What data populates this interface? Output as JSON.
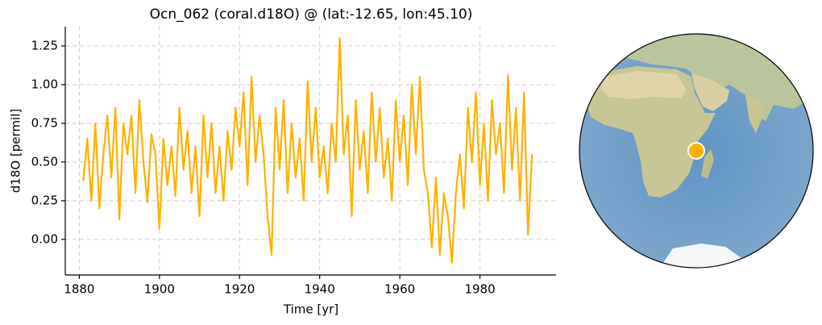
{
  "chart_data": {
    "type": "line",
    "title": "Ocn_062 (coral.d18O) @ (lat:-12.65, lon:45.10)",
    "xlabel": "Time [yr]",
    "ylabel": "d18O [permil]",
    "x": [
      1881,
      1882,
      1883,
      1884,
      1885,
      1886,
      1887,
      1888,
      1889,
      1890,
      1891,
      1892,
      1893,
      1894,
      1895,
      1896,
      1897,
      1898,
      1899,
      1900,
      1901,
      1902,
      1903,
      1904,
      1905,
      1906,
      1907,
      1908,
      1909,
      1910,
      1911,
      1912,
      1913,
      1914,
      1915,
      1916,
      1917,
      1918,
      1919,
      1920,
      1921,
      1922,
      1923,
      1924,
      1925,
      1926,
      1927,
      1928,
      1929,
      1930,
      1931,
      1932,
      1933,
      1934,
      1935,
      1936,
      1937,
      1938,
      1939,
      1940,
      1941,
      1942,
      1943,
      1944,
      1945,
      1946,
      1947,
      1948,
      1949,
      1950,
      1951,
      1952,
      1953,
      1954,
      1955,
      1956,
      1957,
      1958,
      1959,
      1960,
      1961,
      1962,
      1963,
      1964,
      1965,
      1966,
      1967,
      1968,
      1969,
      1970,
      1971,
      1972,
      1973,
      1974,
      1975,
      1976,
      1977,
      1978,
      1979,
      1980,
      1981,
      1982,
      1983,
      1984,
      1985,
      1986,
      1987,
      1988,
      1989,
      1990,
      1991,
      1992,
      1993
    ],
    "series": [
      {
        "color": "#ffb000",
        "values": [
          0.38,
          0.65,
          0.25,
          0.75,
          0.2,
          0.55,
          0.8,
          0.4,
          0.85,
          0.13,
          0.75,
          0.55,
          0.8,
          0.3,
          0.9,
          0.5,
          0.24,
          0.68,
          0.55,
          0.07,
          0.65,
          0.35,
          0.6,
          0.28,
          0.85,
          0.45,
          0.7,
          0.3,
          0.6,
          0.15,
          0.8,
          0.4,
          0.75,
          0.3,
          0.6,
          0.25,
          0.7,
          0.45,
          0.85,
          0.6,
          0.95,
          0.35,
          1.05,
          0.5,
          0.8,
          0.55,
          0.15,
          -0.1,
          0.85,
          0.45,
          0.9,
          0.3,
          0.75,
          0.4,
          0.65,
          0.25,
          1.02,
          0.5,
          0.85,
          0.4,
          0.6,
          0.3,
          0.75,
          0.5,
          1.3,
          0.55,
          0.8,
          0.15,
          0.9,
          0.45,
          0.7,
          0.3,
          0.95,
          0.5,
          0.85,
          0.4,
          0.65,
          0.25,
          0.9,
          0.5,
          0.8,
          0.35,
          1.0,
          0.55,
          1.05,
          0.45,
          0.3,
          -0.05,
          0.4,
          -0.1,
          0.3,
          0.15,
          -0.15,
          0.3,
          0.55,
          0.2,
          0.85,
          0.5,
          0.95,
          0.35,
          0.75,
          0.25,
          0.9,
          0.55,
          0.75,
          0.3,
          1.06,
          0.45,
          0.85,
          0.25,
          0.95,
          0.03,
          0.55
        ]
      }
    ],
    "xlim": [
      1876.5,
      1999
    ],
    "xticks": [
      1880,
      1900,
      1920,
      1940,
      1960,
      1980
    ],
    "ylim": [
      -0.23,
      1.375
    ],
    "yticks": [
      {
        "value": 0,
        "label": "0.00"
      },
      {
        "value": 0.25,
        "label": "0.25"
      },
      {
        "value": 0.5,
        "label": "0.50"
      },
      {
        "value": 0.75,
        "label": "0.75"
      },
      {
        "value": 1,
        "label": "1.00"
      },
      {
        "value": 1.25,
        "label": "1.25"
      }
    ],
    "grid": true
  }
}
